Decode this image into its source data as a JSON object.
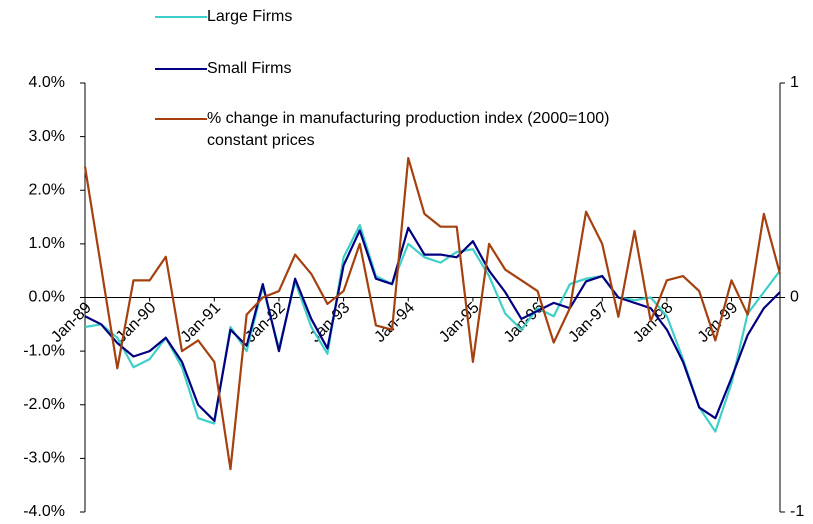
{
  "chart_data": {
    "type": "line",
    "categories": [
      "Jan-89",
      null,
      null,
      null,
      "Jan-90",
      null,
      null,
      null,
      "Jan-91",
      null,
      null,
      null,
      "Jan-92",
      null,
      null,
      null,
      "Jan-93",
      null,
      null,
      null,
      "Jan-94",
      null,
      null,
      null,
      "Jan-95",
      null,
      null,
      null,
      "Jan-96",
      null,
      null,
      null,
      "Jan-97",
      null,
      null,
      null,
      "Jan-98",
      null,
      null,
      null,
      "Jan-99",
      null,
      null,
      null
    ],
    "series": [
      {
        "name": "Large Firms",
        "color": "#40cfc8",
        "values": [
          -0.55,
          -0.5,
          -0.75,
          -1.3,
          -1.15,
          -0.75,
          -1.3,
          -2.25,
          -2.35,
          -0.55,
          -1.0,
          0.2,
          -0.95,
          0.3,
          -0.55,
          -1.05,
          0.75,
          1.35,
          0.4,
          0.25,
          1.0,
          0.75,
          0.65,
          0.85,
          0.9,
          0.4,
          -0.3,
          -0.6,
          -0.2,
          -0.35,
          0.25,
          0.35,
          0.4,
          0.0,
          -0.05,
          0.0,
          -0.35,
          -1.15,
          -2.05,
          -2.5,
          -1.6,
          -0.3,
          0.1,
          0.5
        ]
      },
      {
        "name": "Small Firms",
        "color": "#000080",
        "values": [
          -0.35,
          -0.5,
          -0.85,
          -1.1,
          -1.0,
          -0.75,
          -1.2,
          -2.0,
          -2.3,
          -0.6,
          -0.9,
          0.25,
          -1.0,
          0.35,
          -0.4,
          -0.95,
          0.6,
          1.25,
          0.35,
          0.25,
          1.3,
          0.8,
          0.8,
          0.75,
          1.05,
          0.5,
          0.1,
          -0.4,
          -0.25,
          -0.1,
          -0.2,
          0.3,
          0.4,
          0.0,
          -0.1,
          -0.2,
          -0.6,
          -1.2,
          -2.05,
          -2.25,
          -1.5,
          -0.7,
          -0.2,
          0.1
        ]
      },
      {
        "name": "% change in manufacturing production index (2000=100) constant prices",
        "color": "#a5400f",
        "axis": "y2",
        "values": [
          0.61,
          0.14,
          -0.33,
          0.08,
          0.08,
          0.19,
          -0.25,
          -0.2,
          -0.3,
          -0.8,
          -0.08,
          0,
          0.03,
          0.2,
          0.11,
          -0.03,
          0.03,
          0.25,
          -0.13,
          -0.15,
          0.65,
          0.39,
          0.33,
          0.33,
          -0.3,
          0.25,
          0.13,
          0.08,
          0.03,
          -0.21,
          -0.05,
          0.4,
          0.25,
          -0.09,
          0.31,
          -0.11,
          0.08,
          0.1,
          0.03,
          -0.2,
          0.08,
          -0.08,
          0.39,
          0.11
        ]
      }
    ],
    "ylim": [
      -4,
      4
    ],
    "yticks": [
      {
        "value": -4,
        "label": "-4.0%"
      },
      {
        "value": -3,
        "label": "-3.0%"
      },
      {
        "value": -2,
        "label": "-2.0%"
      },
      {
        "value": -1,
        "label": "-1.0%"
      },
      {
        "value": 0,
        "label": "0.0%"
      },
      {
        "value": 1,
        "label": "1.0%"
      },
      {
        "value": 2,
        "label": "2.0%"
      },
      {
        "value": 3,
        "label": "3.0%"
      },
      {
        "value": 4,
        "label": "4.0%"
      }
    ],
    "y2lim": [
      -1,
      1
    ],
    "y2ticks": [
      -1,
      0,
      1
    ],
    "grid": false
  }
}
